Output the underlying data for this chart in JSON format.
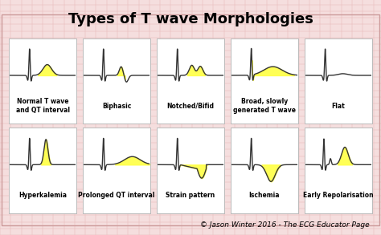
{
  "title": "Types of T wave Morphologies",
  "title_fontsize": 13,
  "background_color": "#f5dede",
  "grid_color": "#e8b8b8",
  "box_color": "#ffffff",
  "box_border_color": "#bbbbbb",
  "ecg_color": "#333333",
  "fill_color": "#ffff44",
  "fill_alpha": 0.9,
  "copyright": "© Jason Winter 2016 - The ECG Educator Page",
  "copyright_fontsize": 6.5,
  "label_fontsize": 5.5,
  "rows": 2,
  "cols": 5,
  "panels": [
    {
      "label": "Normal T wave\nand QT interval",
      "type": "normal"
    },
    {
      "label": "Biphasic",
      "type": "biphasic"
    },
    {
      "label": "Notched/Bifid",
      "type": "notched"
    },
    {
      "label": "Broad, slowly\ngenerated T wave",
      "type": "broad"
    },
    {
      "label": "Flat",
      "type": "flat"
    },
    {
      "label": "Hyperkalemia",
      "type": "hyperkalemia"
    },
    {
      "label": "Prolonged QT interval",
      "type": "prolonged_qt"
    },
    {
      "label": "Strain pattern",
      "type": "strain"
    },
    {
      "label": "Ischemia",
      "type": "ischemia"
    },
    {
      "label": "Early Repolarisation",
      "type": "early_repol"
    }
  ]
}
